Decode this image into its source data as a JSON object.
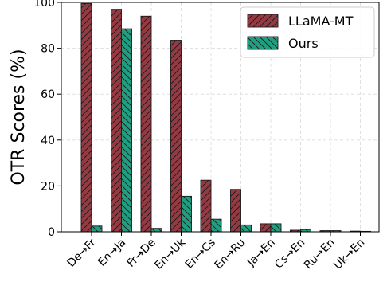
{
  "chart_data": {
    "type": "bar",
    "categories": [
      "De→Fr",
      "En→Ja",
      "Fr→De",
      "En→Uk",
      "En→Cs",
      "En→Ru",
      "Ja→En",
      "Cs→En",
      "Ru→En",
      "Uk→En"
    ],
    "series": [
      {
        "name": "LLaMA-MT",
        "color": "#953a43",
        "hatch": "forward",
        "values": [
          99.5,
          97,
          94,
          83.5,
          22.5,
          18.5,
          3.5,
          0.7,
          0.5,
          0.3
        ]
      },
      {
        "name": "Ours",
        "color": "#1f9e80",
        "hatch": "back",
        "values": [
          2.5,
          88.5,
          1.5,
          15.5,
          5.5,
          3,
          3.5,
          1,
          0.5,
          0.2
        ]
      }
    ],
    "xlabel": "",
    "ylabel": "OTR Scores (%)",
    "ylim": [
      0,
      100
    ],
    "yticks": [
      0,
      20,
      40,
      60,
      80,
      100
    ],
    "grid": true,
    "legend_position": "top-right"
  }
}
